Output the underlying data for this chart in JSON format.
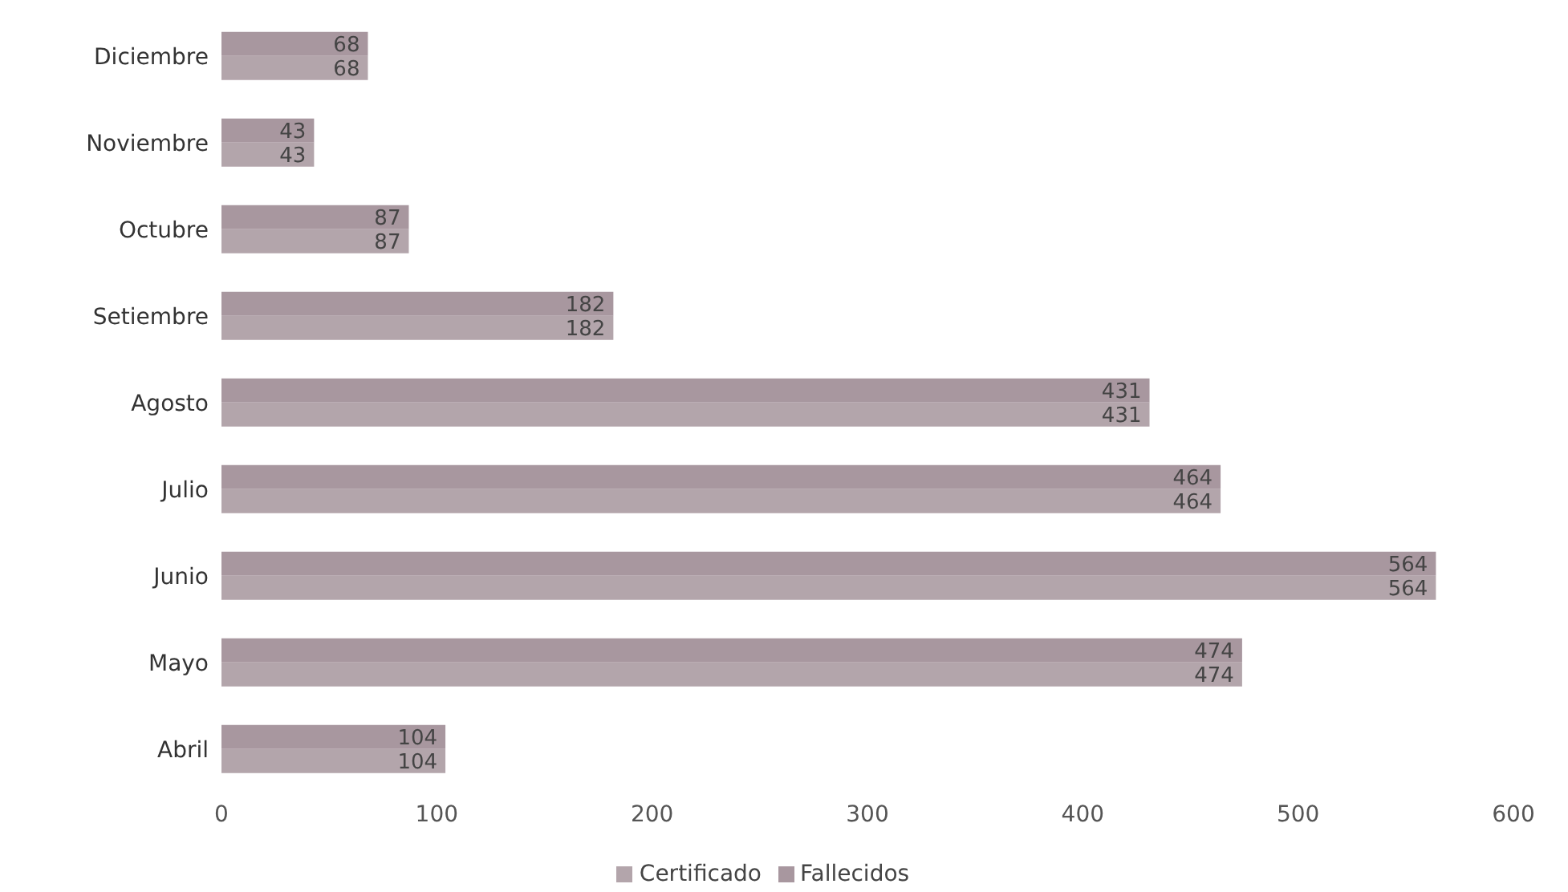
{
  "chart_data": {
    "type": "bar",
    "orientation": "horizontal",
    "categories": [
      "Diciembre",
      "Noviembre",
      "Octubre",
      "Setiembre",
      "Agosto",
      "Julio",
      "Junio",
      "Mayo",
      "Abril"
    ],
    "series": [
      {
        "name": "Fallecidos",
        "color": "#a8979f",
        "values": [
          68,
          43,
          87,
          182,
          431,
          464,
          564,
          474,
          104
        ]
      },
      {
        "name": "Certificado",
        "color": "#b3a5ab",
        "values": [
          68,
          43,
          87,
          182,
          431,
          464,
          564,
          474,
          104
        ]
      }
    ],
    "xlim": [
      0,
      600
    ],
    "xticks": [
      0,
      100,
      200,
      300,
      400,
      500,
      600
    ],
    "data_labels": true,
    "legend": "bottom",
    "grid": false
  }
}
